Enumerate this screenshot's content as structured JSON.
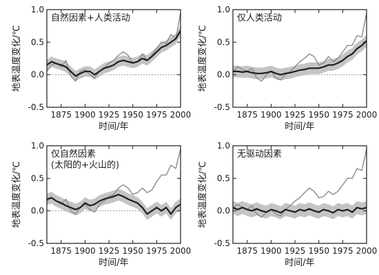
{
  "chart_data": [
    {
      "type": "line",
      "title": [
        "自然因素+人类活动"
      ],
      "xlabel": "时间/年",
      "ylabel": "地表温度变化/℃",
      "xticks": [
        "1875",
        "1900",
        "1925",
        "1950",
        "1975",
        "2000"
      ],
      "yticks": [
        "1.0",
        "0.5",
        "0.0",
        "-0.5"
      ],
      "xlim": [
        1860,
        2000
      ],
      "ylim": [
        -0.5,
        1.0
      ],
      "zero_line": true,
      "observed": {
        "x": [
          1860,
          1865,
          1870,
          1875,
          1880,
          1885,
          1890,
          1895,
          1900,
          1905,
          1910,
          1915,
          1920,
          1925,
          1930,
          1935,
          1940,
          1945,
          1950,
          1955,
          1960,
          1965,
          1970,
          1975,
          1980,
          1985,
          1990,
          1995,
          2000
        ],
        "y": [
          0.05,
          0.15,
          0.18,
          0.12,
          0.22,
          -0.02,
          -0.1,
          0.05,
          0.08,
          0.0,
          -0.05,
          0.05,
          0.1,
          0.18,
          0.22,
          0.3,
          0.35,
          0.3,
          0.18,
          0.2,
          0.32,
          0.22,
          0.3,
          0.4,
          0.5,
          0.48,
          0.62,
          0.55,
          0.95
        ]
      },
      "simulated": {
        "x": [
          1860,
          1865,
          1870,
          1875,
          1880,
          1885,
          1890,
          1895,
          1900,
          1905,
          1910,
          1915,
          1920,
          1925,
          1930,
          1935,
          1940,
          1945,
          1950,
          1955,
          1960,
          1965,
          1970,
          1975,
          1980,
          1985,
          1990,
          1995,
          2000
        ],
        "y": [
          0.15,
          0.2,
          0.17,
          0.15,
          0.12,
          0.05,
          -0.02,
          0.02,
          0.05,
          0.05,
          0.0,
          0.05,
          0.1,
          0.12,
          0.15,
          0.2,
          0.22,
          0.2,
          0.18,
          0.2,
          0.25,
          0.22,
          0.28,
          0.35,
          0.42,
          0.45,
          0.5,
          0.55,
          0.68
        ],
        "band": 0.08
      }
    },
    {
      "type": "line",
      "title": [
        "仅人类活动"
      ],
      "xlabel": "时间/年",
      "ylabel": "地表温度变化/℃",
      "xticks": [
        "1875",
        "1900",
        "1925",
        "1950",
        "1975",
        "2000"
      ],
      "yticks": [
        "1.0",
        "0.5",
        "0.0",
        "-0.5"
      ],
      "xlim": [
        1860,
        2000
      ],
      "ylim": [
        -0.5,
        1.0
      ],
      "zero_line": true,
      "observed": {
        "x": [
          1860,
          1865,
          1870,
          1875,
          1880,
          1885,
          1890,
          1895,
          1900,
          1905,
          1910,
          1915,
          1920,
          1925,
          1930,
          1935,
          1940,
          1945,
          1950,
          1955,
          1960,
          1965,
          1970,
          1975,
          1980,
          1985,
          1990,
          1995,
          2000
        ],
        "y": [
          0.05,
          0.12,
          0.08,
          0.05,
          0.1,
          -0.05,
          -0.1,
          0.0,
          0.05,
          -0.05,
          -0.08,
          0.0,
          0.05,
          0.12,
          0.2,
          0.25,
          0.32,
          0.28,
          0.15,
          0.18,
          0.28,
          0.2,
          0.25,
          0.35,
          0.45,
          0.45,
          0.6,
          0.58,
          0.95
        ]
      },
      "simulated": {
        "x": [
          1860,
          1865,
          1870,
          1875,
          1880,
          1885,
          1890,
          1895,
          1900,
          1905,
          1910,
          1915,
          1920,
          1925,
          1930,
          1935,
          1940,
          1945,
          1950,
          1955,
          1960,
          1965,
          1970,
          1975,
          1980,
          1985,
          1990,
          1995,
          2000
        ],
        "y": [
          0.05,
          0.05,
          0.04,
          0.05,
          0.03,
          0.02,
          0.02,
          0.03,
          0.05,
          0.02,
          0.0,
          0.02,
          0.03,
          0.05,
          0.07,
          0.08,
          0.1,
          0.1,
          0.1,
          0.12,
          0.15,
          0.15,
          0.18,
          0.22,
          0.28,
          0.32,
          0.4,
          0.45,
          0.52
        ],
        "band": 0.09
      }
    },
    {
      "type": "line",
      "title": [
        "仅自然因素",
        "(太阳的+火山的)"
      ],
      "xlabel": "时间/年",
      "ylabel": "地表温度变化/℃",
      "xticks": [
        "1875",
        "1900",
        "1925",
        "1950",
        "1975",
        "2000"
      ],
      "yticks": [
        "1.0",
        "0.5",
        "0.0",
        "-0.5"
      ],
      "xlim": [
        1860,
        2000
      ],
      "ylim": [
        -0.5,
        1.0
      ],
      "zero_line": true,
      "observed": {
        "x": [
          1860,
          1865,
          1870,
          1875,
          1880,
          1885,
          1890,
          1895,
          1900,
          1905,
          1910,
          1915,
          1920,
          1925,
          1930,
          1935,
          1940,
          1945,
          1950,
          1955,
          1960,
          1965,
          1970,
          1975,
          1980,
          1985,
          1990,
          1995,
          2000
        ],
        "y": [
          0.15,
          0.2,
          0.15,
          0.1,
          0.18,
          0.0,
          -0.05,
          0.05,
          0.1,
          0.02,
          -0.02,
          0.1,
          0.15,
          0.22,
          0.25,
          0.35,
          0.4,
          0.35,
          0.25,
          0.28,
          0.35,
          0.28,
          0.32,
          0.45,
          0.55,
          0.55,
          0.7,
          0.65,
          0.95
        ]
      },
      "simulated": {
        "x": [
          1860,
          1865,
          1870,
          1875,
          1880,
          1885,
          1890,
          1895,
          1900,
          1905,
          1910,
          1915,
          1920,
          1925,
          1930,
          1935,
          1940,
          1945,
          1950,
          1955,
          1960,
          1965,
          1970,
          1975,
          1980,
          1985,
          1990,
          1995,
          2000
        ],
        "y": [
          0.18,
          0.2,
          0.15,
          0.12,
          0.08,
          0.05,
          0.02,
          0.05,
          0.12,
          0.08,
          0.1,
          0.15,
          0.18,
          0.2,
          0.22,
          0.25,
          0.22,
          0.18,
          0.15,
          0.12,
          0.05,
          -0.05,
          0.0,
          0.05,
          0.0,
          0.05,
          -0.05,
          0.05,
          0.1
        ],
        "band": 0.09
      }
    },
    {
      "type": "line",
      "title": [
        "无驱动因素"
      ],
      "xlabel": "时间/年",
      "ylabel": "地表温度变化/℃",
      "xticks": [
        "1875",
        "1900",
        "1925",
        "1950",
        "1975",
        "2000"
      ],
      "yticks": [
        "1.0",
        "0.5",
        "0.0",
        "-0.5"
      ],
      "xlim": [
        1860,
        2000
      ],
      "ylim": [
        -0.5,
        1.0
      ],
      "zero_line": true,
      "observed": {
        "x": [
          1860,
          1865,
          1870,
          1875,
          1880,
          1885,
          1890,
          1895,
          1900,
          1905,
          1910,
          1915,
          1920,
          1925,
          1930,
          1935,
          1940,
          1945,
          1950,
          1955,
          1960,
          1965,
          1970,
          1975,
          1980,
          1985,
          1990,
          1995,
          2000
        ],
        "y": [
          0.05,
          0.1,
          0.05,
          0.02,
          0.08,
          -0.05,
          -0.1,
          -0.02,
          0.02,
          -0.05,
          -0.08,
          0.02,
          0.08,
          0.15,
          0.2,
          0.28,
          0.35,
          0.3,
          0.2,
          0.22,
          0.3,
          0.25,
          0.3,
          0.4,
          0.5,
          0.5,
          0.65,
          0.62,
          0.95
        ]
      },
      "simulated": {
        "x": [
          1860,
          1865,
          1870,
          1875,
          1880,
          1885,
          1890,
          1895,
          1900,
          1905,
          1910,
          1915,
          1920,
          1925,
          1930,
          1935,
          1940,
          1945,
          1950,
          1955,
          1960,
          1965,
          1970,
          1975,
          1980,
          1985,
          1990,
          1995,
          2000
        ],
        "y": [
          0.05,
          0.02,
          0.05,
          0.02,
          0.0,
          0.03,
          0.0,
          -0.02,
          0.02,
          0.0,
          -0.03,
          0.02,
          0.0,
          -0.02,
          0.02,
          0.0,
          0.03,
          0.0,
          -0.02,
          0.02,
          0.0,
          -0.03,
          0.02,
          0.0,
          0.02,
          -0.02,
          0.05,
          0.03,
          0.05
        ],
        "band": 0.1
      }
    }
  ]
}
